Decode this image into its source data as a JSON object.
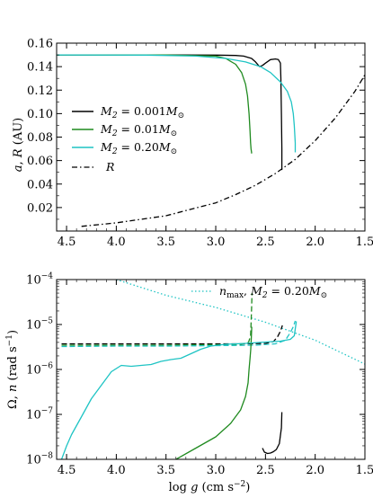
{
  "chart_data": [
    {
      "type": "line",
      "ylabel": "a, R (AU)",
      "xlim": [
        4.6,
        1.5
      ],
      "ylim": [
        0.0,
        0.16
      ],
      "xticks": [
        "4.5",
        "4.0",
        "3.5",
        "3.0",
        "2.5",
        "2.0",
        "1.5"
      ],
      "yticks": [
        "0.02",
        "0.04",
        "0.06",
        "0.08",
        "0.10",
        "0.12",
        "0.14",
        "0.16"
      ],
      "legend": {
        "placement": "center-left",
        "entries": [
          "M2 = 0.001 M☉",
          "M2 = 0.01 M☉",
          "M2 = 0.20 M☉",
          "R"
        ]
      },
      "series": [
        {
          "name": "M2 = 0.001 M☉",
          "color": "#000000",
          "style": "solid",
          "x": [
            4.6,
            3.5,
            3.0,
            2.8,
            2.72,
            2.64,
            2.6,
            2.56,
            2.53,
            2.5,
            2.45,
            2.4,
            2.37,
            2.35,
            2.345,
            2.34,
            2.335,
            2.335
          ],
          "y": [
            0.15,
            0.15,
            0.1498,
            0.1495,
            0.149,
            0.147,
            0.144,
            0.14,
            0.141,
            0.143,
            0.146,
            0.1465,
            0.146,
            0.143,
            0.13,
            0.1,
            0.07,
            0.052
          ]
        },
        {
          "name": "M2 = 0.01 M☉",
          "color": "#1f8a1f",
          "style": "solid",
          "x": [
            4.6,
            3.5,
            3.0,
            2.9,
            2.8,
            2.74,
            2.7,
            2.68,
            2.665,
            2.655,
            2.65,
            2.645,
            2.64,
            2.64
          ],
          "y": [
            0.15,
            0.15,
            0.149,
            0.147,
            0.142,
            0.135,
            0.125,
            0.115,
            0.1,
            0.085,
            0.075,
            0.07,
            0.067,
            0.066
          ]
        },
        {
          "name": "M2 = 0.20 M☉",
          "color": "#1fc4c4",
          "style": "solid",
          "x": [
            4.6,
            3.7,
            3.2,
            2.9,
            2.7,
            2.55,
            2.45,
            2.35,
            2.28,
            2.24,
            2.22,
            2.21,
            2.2,
            2.2
          ],
          "y": [
            0.15,
            0.1498,
            0.149,
            0.147,
            0.144,
            0.14,
            0.135,
            0.127,
            0.119,
            0.11,
            0.1,
            0.09,
            0.075,
            0.067
          ]
        },
        {
          "name": "R",
          "color": "#000000",
          "style": "dashdot",
          "x": [
            4.35,
            4.0,
            3.5,
            3.0,
            2.8,
            2.6,
            2.4,
            2.2,
            2.0,
            1.8,
            1.6,
            1.5
          ],
          "y": [
            0.004,
            0.007,
            0.013,
            0.024,
            0.031,
            0.039,
            0.049,
            0.061,
            0.077,
            0.096,
            0.119,
            0.133
          ]
        }
      ]
    },
    {
      "type": "line",
      "xlabel": "log g (cm s^-2)",
      "ylabel": "Ω, n (rad s^-1)",
      "yscale": "log",
      "xlim": [
        4.6,
        1.5
      ],
      "ylim": [
        1e-08,
        0.0001
      ],
      "xticks": [
        "4.5",
        "4.0",
        "3.5",
        "3.0",
        "2.5",
        "2.0",
        "1.5"
      ],
      "yticks": [
        "10^-8",
        "10^-7",
        "10^-6",
        "10^-5",
        "10^-4"
      ],
      "legend": {
        "placement": "top-right",
        "entries": [
          "n_max, M2 = 0.20 M☉"
        ]
      },
      "series": [
        {
          "name": "n_max, M2 = 0.20 M☉",
          "color": "#1fc4c4",
          "style": "dotted",
          "x": [
            4.0,
            3.5,
            3.0,
            2.5,
            2.0,
            1.5
          ],
          "logy": [
            -4.0,
            -4.35,
            -4.62,
            -4.95,
            -5.35,
            -5.88
          ]
        },
        {
          "name": "n M2=0.001",
          "color": "#000000",
          "style": "dashed",
          "x": [
            4.55,
            4.0,
            3.5,
            3.0,
            2.7,
            2.5,
            2.42,
            2.38,
            2.35,
            2.33
          ],
          "logy": [
            -5.43,
            -5.43,
            -5.43,
            -5.43,
            -5.43,
            -5.42,
            -5.38,
            -5.28,
            -5.15,
            -5.02
          ]
        },
        {
          "name": "n M2=0.01",
          "color": "#1f8a1f",
          "style": "dashed",
          "x": [
            4.55,
            4.0,
            3.5,
            3.0,
            2.75,
            2.67,
            2.65,
            2.645,
            2.64,
            2.635
          ],
          "logy": [
            -5.46,
            -5.46,
            -5.46,
            -5.45,
            -5.44,
            -5.4,
            -5.25,
            -5.0,
            -4.65,
            -4.3
          ]
        },
        {
          "name": "n M2=0.20",
          "color": "#1fc4c4",
          "style": "dashed",
          "x": [
            4.55,
            4.0,
            3.5,
            3.0,
            2.6,
            2.4,
            2.3,
            2.25,
            2.22,
            2.2
          ],
          "logy": [
            -5.49,
            -5.48,
            -5.48,
            -5.47,
            -5.46,
            -5.43,
            -5.35,
            -5.18,
            -5.05,
            -4.92
          ]
        },
        {
          "name": "Ω M2=0.001",
          "color": "#000000",
          "style": "solid",
          "x": [
            2.53,
            2.51,
            2.48,
            2.45,
            2.42,
            2.39,
            2.36,
            2.34,
            2.335
          ],
          "logy": [
            -7.75,
            -7.84,
            -7.87,
            -7.86,
            -7.83,
            -7.78,
            -7.65,
            -7.3,
            -6.95
          ]
        },
        {
          "name": "Ω M2=0.01",
          "color": "#1f8a1f",
          "style": "solid",
          "x": [
            3.4,
            3.2,
            3.0,
            2.85,
            2.75,
            2.7,
            2.675,
            2.665,
            2.655,
            2.648,
            2.642,
            2.638
          ],
          "logy": [
            -8.0,
            -7.75,
            -7.5,
            -7.2,
            -6.9,
            -6.6,
            -6.3,
            -6.0,
            -5.75,
            -5.55,
            -5.3,
            -5.05
          ]
        },
        {
          "name": "Ω M2=0.20",
          "color": "#1fc4c4",
          "style": "solid",
          "x": [
            4.55,
            4.5,
            4.45,
            4.35,
            4.25,
            4.15,
            4.05,
            3.95,
            3.85,
            3.75,
            3.65,
            3.55,
            3.45,
            3.35,
            3.25,
            3.15,
            3.05,
            2.9,
            2.7,
            2.5,
            2.35,
            2.25,
            2.21,
            2.2,
            2.19
          ],
          "logy": [
            -8.0,
            -7.7,
            -7.45,
            -7.05,
            -6.65,
            -6.35,
            -6.05,
            -5.91,
            -5.93,
            -5.91,
            -5.89,
            -5.82,
            -5.78,
            -5.75,
            -5.65,
            -5.55,
            -5.48,
            -5.44,
            -5.42,
            -5.39,
            -5.37,
            -5.33,
            -5.25,
            -5.1,
            -4.93
          ]
        }
      ]
    }
  ]
}
